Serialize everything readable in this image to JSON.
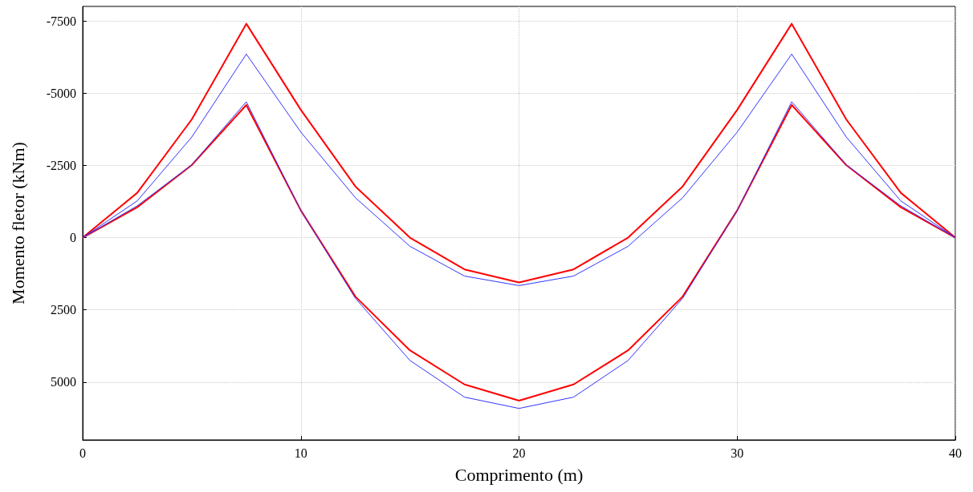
{
  "chart_data": {
    "type": "line",
    "xlabel": "Comprimento (m)",
    "ylabel": "Momento fletor (kNm)",
    "series": [
      {
        "color": "#ff0000",
        "x": [
          0,
          2.5,
          5,
          7.5,
          10,
          12.5,
          15,
          17.5,
          20,
          22.5,
          25,
          27.5,
          30,
          32.5,
          35,
          37.5,
          40
        ],
        "values": [
          0,
          -1550,
          -4090,
          -7400,
          -4420,
          -1770,
          0,
          1100,
          1550,
          1100,
          0,
          -1770,
          -4420,
          -7400,
          -4090,
          -1550,
          0
        ]
      },
      {
        "color": "#ff0000",
        "x": [
          0,
          2.5,
          5,
          7.5,
          10,
          12.5,
          15,
          17.5,
          20,
          22.5,
          25,
          27.5,
          30,
          32.5,
          35,
          37.5,
          40
        ],
        "values": [
          0,
          -1050,
          -2510,
          -4590,
          -940,
          2040,
          3900,
          5080,
          5640,
          5080,
          3900,
          2040,
          -940,
          -4590,
          -2510,
          -1050,
          0
        ]
      },
      {
        "color": "#3333ff",
        "x": [
          0,
          2.5,
          5,
          7.5,
          10,
          12.5,
          15,
          17.5,
          20,
          22.5,
          25,
          27.5,
          30,
          32.5,
          35,
          37.5,
          40
        ],
        "values": [
          0,
          -1270,
          -3480,
          -6350,
          -3650,
          -1380,
          300,
          1330,
          1660,
          1330,
          300,
          -1380,
          -3650,
          -6350,
          -3480,
          -1270,
          0
        ]
      },
      {
        "color": "#3333ff",
        "x": [
          0,
          2.5,
          5,
          7.5,
          10,
          12.5,
          15,
          17.5,
          20,
          22.5,
          25,
          27.5,
          30,
          32.5,
          35,
          37.5,
          40
        ],
        "values": [
          0,
          -1100,
          -2520,
          -4700,
          -940,
          2100,
          4250,
          5520,
          5910,
          5520,
          4250,
          2100,
          -940,
          -4700,
          -2520,
          -1100,
          0
        ]
      }
    ],
    "xlim": [
      0,
      40
    ],
    "xticks": [
      0,
      10,
      20,
      30,
      40
    ],
    "ylim": [
      7000,
      -8000
    ],
    "yticks": [
      -7500,
      -5000,
      -2500,
      0,
      2500,
      5000
    ],
    "grid": true,
    "marker": "none",
    "line_style": "solid"
  }
}
